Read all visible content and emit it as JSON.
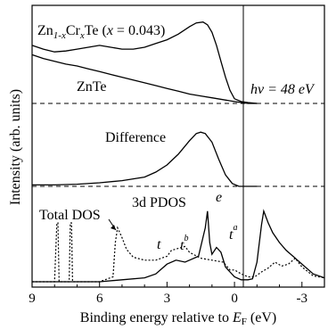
{
  "chart_data": {
    "type": "line",
    "xlabel_prefix": "Binding energy relative to ",
    "xlabel_sym": "E",
    "xlabel_sub": "F",
    "xlabel_unit": " (eV)",
    "ylabel": "Intensity (arb. units)",
    "xlim": [
      9,
      -4
    ],
    "xticks": [
      {
        "v": 9,
        "t": "9"
      },
      {
        "v": 6,
        "t": "6"
      },
      {
        "v": 3,
        "t": "3"
      },
      {
        "v": 0,
        "t": "0"
      },
      {
        "v": -3,
        "t": "-3"
      }
    ],
    "photon_label": "hν = 48 eV",
    "labels": {
      "sample_a": "Zn",
      "sample_sub1": "1-x",
      "sample_b": "Cr",
      "sample_sub2": "x",
      "sample_c": "Te (",
      "sample_d": "x",
      "sample_e": " = 0.043)",
      "reference": "ZnTe",
      "difference": "Difference",
      "total_dos": "Total DOS",
      "pdos": "3d PDOS",
      "e_label": "e",
      "t_label": "t",
      "tb_label": "t",
      "tb_sup": "b",
      "ta_label": "t",
      "ta_sup": "a"
    },
    "series": [
      {
        "name": "Zn1-xCrxTe (x = 0.043)",
        "style": "solid",
        "offset": "upper",
        "x": [
          9,
          8.5,
          8,
          7.5,
          7,
          6.5,
          6,
          5.5,
          5,
          4.5,
          4,
          3.5,
          3,
          2.5,
          2,
          1.7,
          1.4,
          1.2,
          1,
          0.8,
          0.6,
          0.4,
          0.2,
          0,
          -0.3,
          -0.6,
          -1
        ],
        "y": [
          0.62,
          0.58,
          0.55,
          0.56,
          0.58,
          0.6,
          0.62,
          0.6,
          0.58,
          0.58,
          0.6,
          0.64,
          0.68,
          0.74,
          0.82,
          0.86,
          0.87,
          0.84,
          0.76,
          0.62,
          0.45,
          0.28,
          0.14,
          0.05,
          0.02,
          0.01,
          0.0
        ]
      },
      {
        "name": "ZnTe",
        "style": "solid",
        "offset": "upper",
        "x": [
          9,
          8.5,
          8,
          7.5,
          7,
          6.5,
          6,
          5.5,
          5,
          4.5,
          4,
          3.5,
          3,
          2.5,
          2,
          1.5,
          1,
          0.5,
          0,
          -0.3,
          -0.6,
          -1
        ],
        "y": [
          0.52,
          0.48,
          0.45,
          0.42,
          0.4,
          0.37,
          0.34,
          0.31,
          0.28,
          0.25,
          0.22,
          0.19,
          0.16,
          0.13,
          0.1,
          0.08,
          0.06,
          0.04,
          0.02,
          0.01,
          0.0,
          0.0
        ]
      },
      {
        "name": "Difference",
        "style": "solid",
        "offset": "middle",
        "x": [
          9,
          8,
          7,
          6,
          5,
          4,
          3.5,
          3,
          2.5,
          2,
          1.7,
          1.5,
          1.3,
          1,
          0.7,
          0.4,
          0.1,
          -0.2,
          -0.6,
          -1
        ],
        "y": [
          0.02,
          0.02,
          0.03,
          0.05,
          0.08,
          0.13,
          0.2,
          0.3,
          0.45,
          0.64,
          0.74,
          0.76,
          0.74,
          0.62,
          0.38,
          0.16,
          0.04,
          0.0,
          0.0,
          0.0
        ]
      },
      {
        "name": "Total DOS",
        "style": "dotted",
        "offset": "lower",
        "x": [
          9,
          8.0,
          7.9,
          7.85,
          7.8,
          7.6,
          7.35,
          7.3,
          7.25,
          7.2,
          6,
          5.4,
          5.3,
          5.2,
          5.0,
          4.8,
          4.5,
          4.0,
          3.5,
          3.0,
          2.8,
          2.5,
          2.2,
          2.0,
          1.5,
          1.0,
          0.5,
          0.2,
          0,
          -0.3,
          -0.6,
          -0.9,
          -1.2,
          -1.5,
          -1.8,
          -2.1,
          -2.4,
          -2.7,
          -3.0,
          -3.5,
          -4
        ],
        "y": [
          0.0,
          0.0,
          0.6,
          0.6,
          0.0,
          0.0,
          0.0,
          0.6,
          0.6,
          0.0,
          0.0,
          0.05,
          0.4,
          0.55,
          0.45,
          0.33,
          0.25,
          0.22,
          0.22,
          0.26,
          0.32,
          0.34,
          0.36,
          0.3,
          0.24,
          0.22,
          0.2,
          0.12,
          0.12,
          0.08,
          0.05,
          0.05,
          0.1,
          0.14,
          0.2,
          0.16,
          0.18,
          0.24,
          0.15,
          0.06,
          0.04
        ]
      },
      {
        "name": "3d PDOS",
        "style": "solid",
        "offset": "lower",
        "x": [
          9,
          6,
          5,
          4,
          3.5,
          3,
          2.6,
          2.2,
          2.0,
          1.6,
          1.3,
          1.2,
          1.1,
          1.0,
          0.8,
          0.6,
          0.4,
          0.2,
          0,
          -0.3,
          -0.6,
          -0.8,
          -1.0,
          -1.2,
          -1.3,
          -1.5,
          -1.7,
          -2.0,
          -2.3,
          -2.6,
          -3.0,
          -3.5,
          -4
        ],
        "y": [
          0.0,
          0.0,
          0.02,
          0.04,
          0.08,
          0.18,
          0.22,
          0.2,
          0.22,
          0.26,
          0.55,
          0.72,
          0.4,
          0.28,
          0.35,
          0.3,
          0.15,
          0.1,
          0.05,
          0.02,
          0.02,
          0.03,
          0.2,
          0.58,
          0.72,
          0.6,
          0.5,
          0.4,
          0.32,
          0.26,
          0.18,
          0.08,
          0.04
        ]
      }
    ]
  }
}
